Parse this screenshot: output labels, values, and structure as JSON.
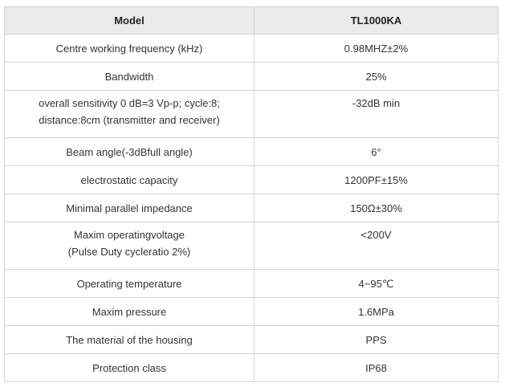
{
  "table": {
    "headers": [
      "Model",
      "TL1000KA"
    ],
    "rows": [
      {
        "param": [
          "Centre working frequency (kHz)"
        ],
        "value": "0.98MHZ±2%"
      },
      {
        "param": [
          "Bandwidth"
        ],
        "value": "25%"
      },
      {
        "param": [
          "overall sensitivity  0 dB=3 Vp-p; cycle:8;",
          "distance:8cm (transmitter and receiver)"
        ],
        "value": "-32dB min"
      },
      {
        "param": [
          "Beam angle(-3dBfull angle)"
        ],
        "value": "6°"
      },
      {
        "param": [
          "electrostatic capacity"
        ],
        "value": "1200PF±15%"
      },
      {
        "param": [
          "Minimal parallel impedance"
        ],
        "value": "150Ω±30%"
      },
      {
        "param": [
          "Maxim operatingvoltage",
          "(Pulse Duty cycleratio 2%)"
        ],
        "value": "<200V"
      },
      {
        "param": [
          "Operating temperature"
        ],
        "value": "4~95℃"
      },
      {
        "param": [
          "Maxim pressure"
        ],
        "value": "1.6MPa"
      },
      {
        "param": [
          "The material of the housing"
        ],
        "value": "PPS"
      },
      {
        "param": [
          "Protection class"
        ],
        "value": "IP68"
      }
    ]
  }
}
